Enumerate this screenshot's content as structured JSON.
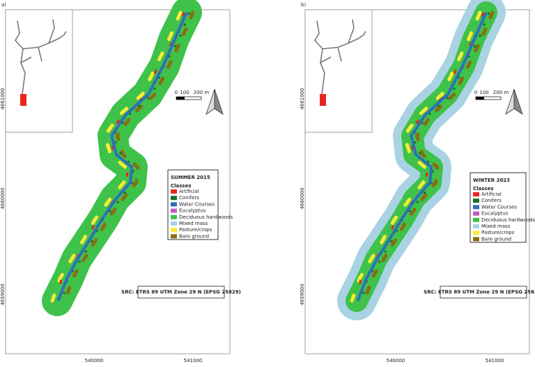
{
  "panels": [
    {
      "label": "a)",
      "season": "SUMMER 2015"
    },
    {
      "label": "b)",
      "season": "WINTER 2023"
    }
  ],
  "legend_heading": "Classes",
  "classes": [
    {
      "name": "Artificial",
      "color": "#e8261e"
    },
    {
      "name": "Conifers",
      "color": "#1f6b2a"
    },
    {
      "name": "Water Courses",
      "color": "#2f6fb8"
    },
    {
      "name": "Eucalyptus",
      "color": "#c45cc0"
    },
    {
      "name": "Deciduous hardwoods",
      "color": "#3ec24a"
    },
    {
      "name": "Mixed mass",
      "color": "#a9d3e3"
    },
    {
      "name": "Pasture/crops",
      "color": "#f5ec3a"
    },
    {
      "name": "Bare ground",
      "color": "#8a6d14"
    }
  ],
  "scale_labels": [
    "0",
    "100",
    "200 m"
  ],
  "crs_note": "SRC: ETRS 89 UTM Zone 29 N (EPSG 25829)",
  "northing_labels": [
    "4661000",
    "4660000",
    "4659000"
  ],
  "easting_labels": [
    "540000",
    "541000"
  ]
}
